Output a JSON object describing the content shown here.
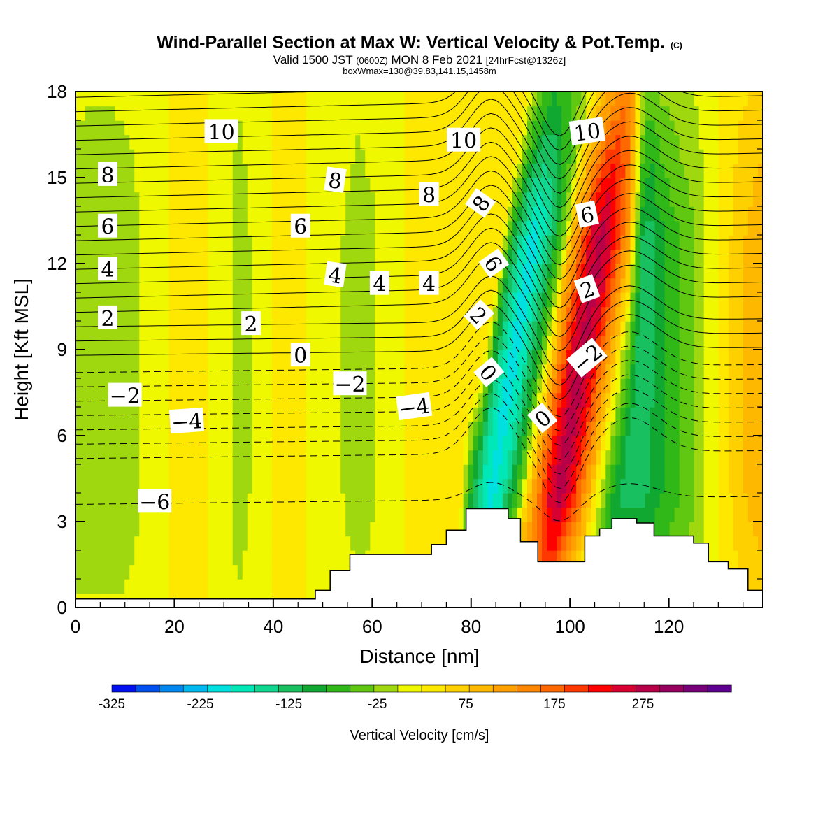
{
  "header": {
    "title": "Wind-Parallel Section at Max W: Vertical Velocity & Pot.Temp.",
    "title_mark": "(C)",
    "subtitle_a": "Valid 1500 JST",
    "subtitle_b": "(0600Z)",
    "subtitle_c": "MON 8 Feb 2021",
    "subtitle_d": "[24hrFcst@1326z]",
    "subtitle2": "boxWmax=130@39.83,141.15,1458m"
  },
  "chart_data": {
    "type": "heatmap",
    "xlabel": "Distance [nm]",
    "ylabel": "Height [Kft MSL]",
    "xlim": [
      0,
      139
    ],
    "ylim": [
      0,
      18
    ],
    "x_ticks": [
      0,
      20,
      40,
      60,
      80,
      100,
      120
    ],
    "y_ticks": [
      0,
      3,
      6,
      9,
      12,
      15,
      18
    ],
    "colorbar": {
      "title": "Vertical Velocity [cm/s]",
      "min": -325,
      "max": 375,
      "step": 25,
      "tick_labels": [
        -325,
        -225,
        -125,
        -25,
        75,
        175,
        275
      ],
      "colors": [
        "#0010f0",
        "#0050f0",
        "#0088f0",
        "#00b8f0",
        "#00e0e0",
        "#00e8b8",
        "#10d890",
        "#18c060",
        "#10a830",
        "#30b818",
        "#60c810",
        "#a0d810",
        "#f0f800",
        "#ffe800",
        "#ffd000",
        "#ffb800",
        "#ffa000",
        "#ff8800",
        "#ff6800",
        "#ff3800",
        "#ff0000",
        "#d80030",
        "#b80048",
        "#980060",
        "#780078",
        "#600090"
      ]
    },
    "vertical_velocity_columns": [
      {
        "x": 0,
        "w": -45
      },
      {
        "x": 5,
        "w": -50
      },
      {
        "x": 10,
        "w": -45
      },
      {
        "x": 15,
        "w": -15
      },
      {
        "x": 20,
        "w": 5
      },
      {
        "x": 25,
        "w": 5
      },
      {
        "x": 30,
        "w": -10
      },
      {
        "x": 33,
        "w": -45
      },
      {
        "x": 37,
        "w": -10
      },
      {
        "x": 42,
        "w": 10
      },
      {
        "x": 47,
        "w": 0
      },
      {
        "x": 52,
        "w": -15
      },
      {
        "x": 57,
        "w": -40
      },
      {
        "x": 60,
        "w": -30
      },
      {
        "x": 64,
        "w": -10
      },
      {
        "x": 68,
        "w": 5
      },
      {
        "x": 72,
        "w": 10
      },
      {
        "x": 75,
        "w": 20
      },
      {
        "x": 78,
        "w": 5
      },
      {
        "x": 80,
        "w": -110
      },
      {
        "x": 82,
        "w": -175
      },
      {
        "x": 84,
        "w": -215
      },
      {
        "x": 86,
        "w": -185
      },
      {
        "x": 88,
        "w": -130
      },
      {
        "x": 90,
        "w": -60
      },
      {
        "x": 92,
        "w": 60
      },
      {
        "x": 94,
        "w": 140
      },
      {
        "x": 96,
        "w": 210
      },
      {
        "x": 98,
        "w": 240
      },
      {
        "x": 100,
        "w": 200
      },
      {
        "x": 102,
        "w": 130
      },
      {
        "x": 104,
        "w": 60
      },
      {
        "x": 106,
        "w": -20
      },
      {
        "x": 108,
        "w": -85
      },
      {
        "x": 110,
        "w": -125
      },
      {
        "x": 113,
        "w": -140
      },
      {
        "x": 116,
        "w": -125
      },
      {
        "x": 119,
        "w": -100
      },
      {
        "x": 122,
        "w": -75
      },
      {
        "x": 125,
        "w": -55
      },
      {
        "x": 128,
        "w": -20
      },
      {
        "x": 131,
        "w": 10
      },
      {
        "x": 134,
        "w": 40
      },
      {
        "x": 137,
        "w": 60
      },
      {
        "x": 139,
        "w": 70
      }
    ],
    "terrain": [
      {
        "x": 0,
        "h": 0.3
      },
      {
        "x": 48,
        "h": 0.3
      },
      {
        "x": 48.5,
        "h": 0.6
      },
      {
        "x": 51.5,
        "h": 1.3
      },
      {
        "x": 55.5,
        "h": 1.85
      },
      {
        "x": 72,
        "h": 2.2
      },
      {
        "x": 75,
        "h": 2.7
      },
      {
        "x": 79,
        "h": 3.45
      },
      {
        "x": 87.5,
        "h": 3.1
      },
      {
        "x": 90,
        "h": 2.3
      },
      {
        "x": 93.5,
        "h": 1.6
      },
      {
        "x": 103,
        "h": 2.5
      },
      {
        "x": 106,
        "h": 2.75
      },
      {
        "x": 108.5,
        "h": 3.1
      },
      {
        "x": 113.5,
        "h": 2.95
      },
      {
        "x": 117,
        "h": 2.5
      },
      {
        "x": 125,
        "h": 2.25
      },
      {
        "x": 128,
        "h": 1.6
      },
      {
        "x": 132,
        "h": 1.35
      },
      {
        "x": 136,
        "h": 0.6
      },
      {
        "x": 139,
        "h": 0.6
      }
    ],
    "potential_temperature_contours": {
      "interval_c": 0.5,
      "levels_kft_at_x0": [
        3.6,
        5.2,
        5.7,
        6.2,
        6.7,
        7.2,
        7.7,
        8.2,
        8.8,
        9.3,
        9.8,
        10.3,
        10.8,
        11.3,
        11.8,
        12.3,
        12.8,
        13.3,
        13.8,
        14.3,
        14.8,
        15.3,
        15.8,
        16.3,
        16.8,
        17.3,
        17.8
      ]
    },
    "contour_labels": [
      {
        "text": "10",
        "x": 29.5,
        "y": 16.6,
        "angle": 0
      },
      {
        "text": "10",
        "x": 78.5,
        "y": 16.3,
        "angle": 0
      },
      {
        "text": "10",
        "x": 103.5,
        "y": 16.6,
        "angle": -8
      },
      {
        "text": "8",
        "x": 6.5,
        "y": 15.1,
        "angle": 0
      },
      {
        "text": "8",
        "x": 52.5,
        "y": 14.9,
        "angle": 8
      },
      {
        "text": "8",
        "x": 71.5,
        "y": 14.4,
        "angle": 0
      },
      {
        "text": "8",
        "x": 82,
        "y": 14.1,
        "angle": -55
      },
      {
        "text": "6",
        "x": 6.5,
        "y": 13.3,
        "angle": 0
      },
      {
        "text": "6",
        "x": 45.5,
        "y": 13.3,
        "angle": 0
      },
      {
        "text": "6",
        "x": 103.5,
        "y": 13.7,
        "angle": -12
      },
      {
        "text": "6",
        "x": 84.5,
        "y": 12,
        "angle": 55
      },
      {
        "text": "4",
        "x": 6.5,
        "y": 11.8,
        "angle": 0
      },
      {
        "text": "4",
        "x": 52.5,
        "y": 11.6,
        "angle": 8
      },
      {
        "text": "4",
        "x": 61.5,
        "y": 11.3,
        "angle": 0
      },
      {
        "text": "4",
        "x": 71.5,
        "y": 11.3,
        "angle": 0
      },
      {
        "text": "2",
        "x": 6.5,
        "y": 10.1,
        "angle": 0
      },
      {
        "text": "2",
        "x": 35.5,
        "y": 9.9,
        "angle": 0
      },
      {
        "text": "2",
        "x": 81.5,
        "y": 10.2,
        "angle": 45
      },
      {
        "text": "2",
        "x": 103.5,
        "y": 11.1,
        "angle": -20
      },
      {
        "text": "0",
        "x": 45.5,
        "y": 8.8,
        "angle": 0
      },
      {
        "text": "0",
        "x": 83.5,
        "y": 8.2,
        "angle": 50
      },
      {
        "text": "0",
        "x": 94.5,
        "y": 6.6,
        "angle": -40
      },
      {
        "text": "−2",
        "x": 10,
        "y": 7.4,
        "angle": 0
      },
      {
        "text": "−2",
        "x": 55.5,
        "y": 7.8,
        "angle": 0
      },
      {
        "text": "−2",
        "x": 103.5,
        "y": 8.7,
        "angle": -40
      },
      {
        "text": "−4",
        "x": 22.5,
        "y": 6.5,
        "angle": -4
      },
      {
        "text": "−4",
        "x": 68.5,
        "y": 7,
        "angle": -8
      },
      {
        "text": "−6",
        "x": 16,
        "y": 3.7,
        "angle": 0
      }
    ]
  }
}
